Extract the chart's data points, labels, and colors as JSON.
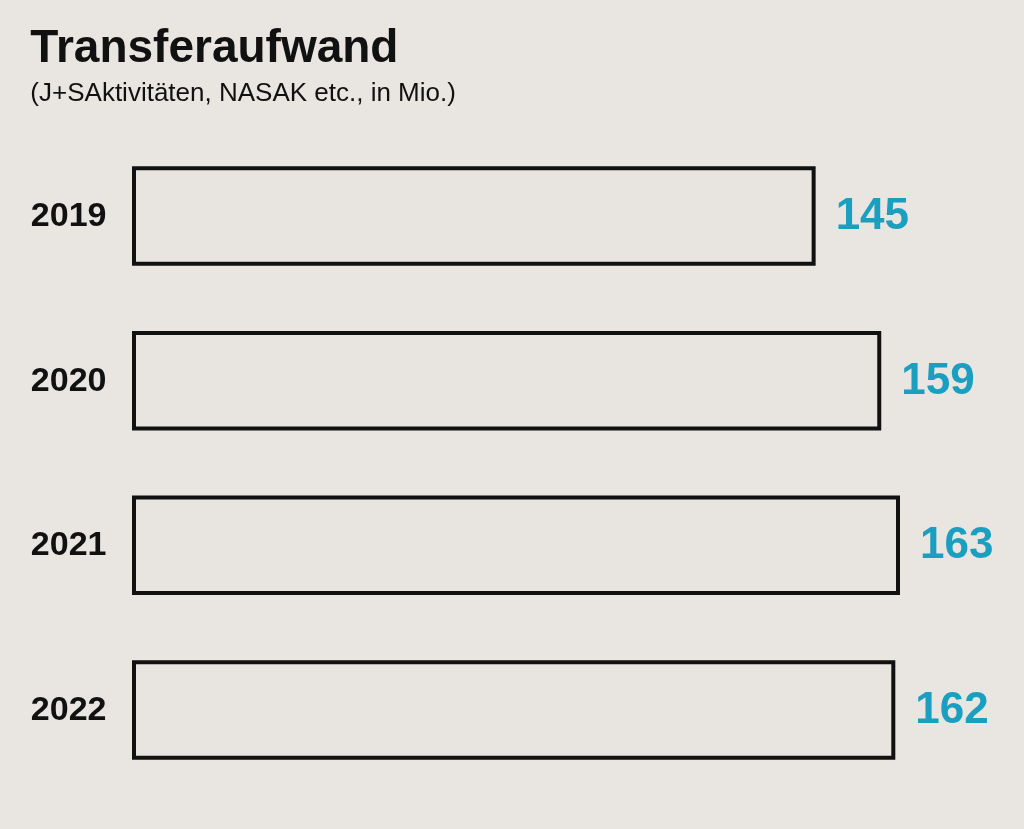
{
  "chart_data": {
    "type": "bar",
    "orientation": "horizontal",
    "title": "Transferaufwand",
    "subtitle": "(J+SAktivitäten, NASAK etc., in Mio.)",
    "categories": [
      "2019",
      "2020",
      "2021",
      "2022"
    ],
    "values": [
      145,
      159,
      163,
      162
    ],
    "color": "#e8e4e0",
    "data_labels": true
  }
}
